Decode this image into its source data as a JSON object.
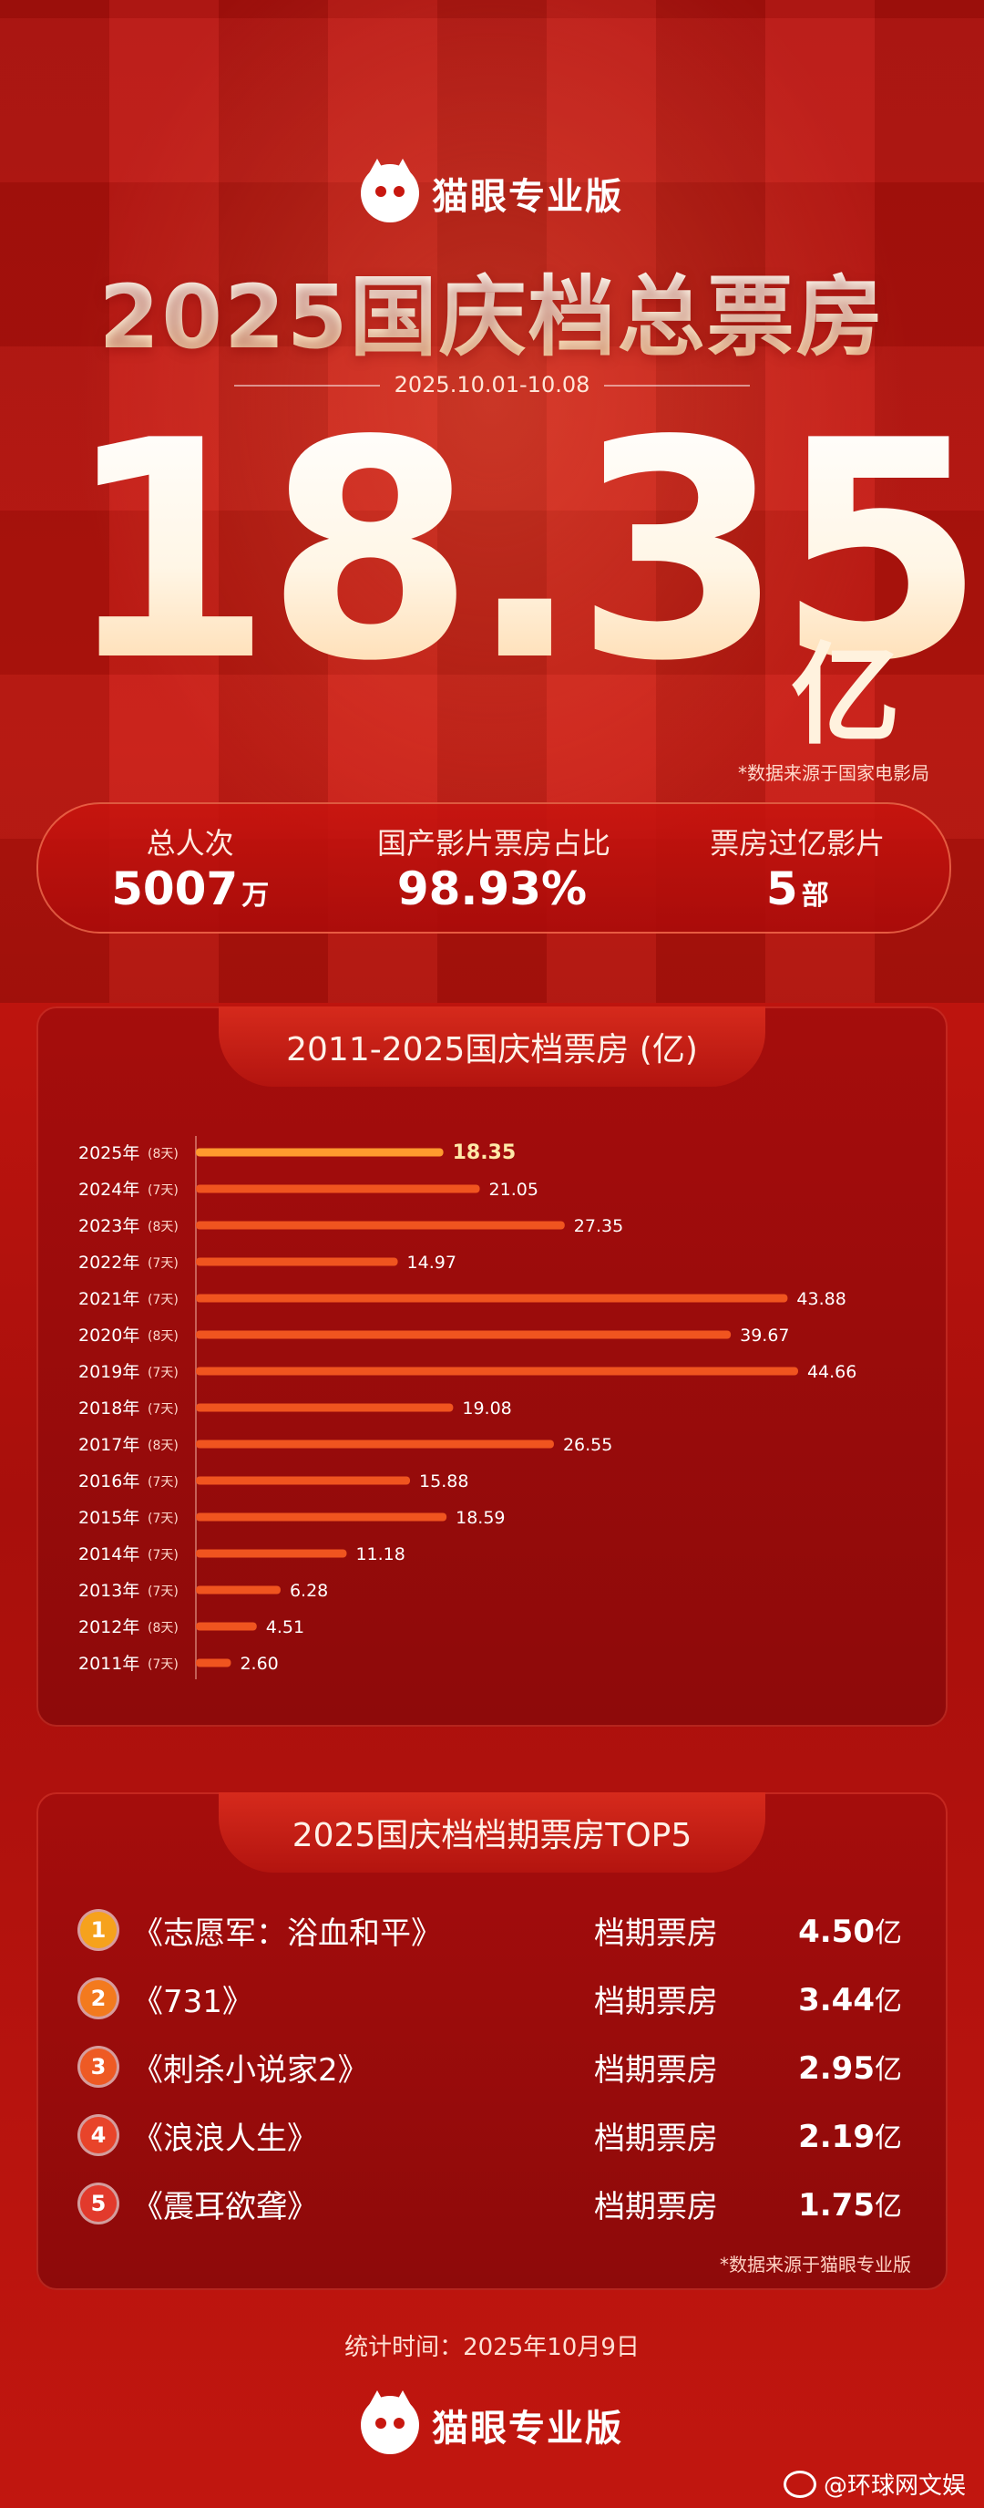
{
  "brand": {
    "name": "猫眼专业版"
  },
  "header": {
    "title": "2025国庆档总票房",
    "date_range": "2025.10.01-10.08",
    "total_value": "18.35",
    "total_unit": "亿",
    "source_note": "*数据来源于国家电影局"
  },
  "stats": [
    {
      "label": "总人次",
      "value": "5007",
      "unit": "万"
    },
    {
      "label": "国产影片票房占比",
      "value": "98.93%",
      "unit": ""
    },
    {
      "label": "票房过亿影片",
      "value": "5",
      "unit": "部"
    }
  ],
  "chart_data": {
    "type": "bar",
    "title": "2011-2025国庆档票房 (亿)",
    "orientation": "horizontal",
    "categories": [
      "2025年",
      "2024年",
      "2023年",
      "2022年",
      "2021年",
      "2020年",
      "2019年",
      "2018年",
      "2017年",
      "2016年",
      "2015年",
      "2014年",
      "2013年",
      "2012年",
      "2011年"
    ],
    "days": [
      "(8天)",
      "(7天)",
      "(8天)",
      "(7天)",
      "(7天)",
      "(8天)",
      "(7天)",
      "(7天)",
      "(8天)",
      "(7天)",
      "(7天)",
      "(7天)",
      "(7天)",
      "(8天)",
      "(7天)"
    ],
    "values": [
      18.35,
      21.05,
      27.35,
      14.97,
      43.88,
      39.67,
      44.66,
      19.08,
      26.55,
      15.88,
      18.59,
      11.18,
      6.28,
      4.51,
      2.6
    ],
    "value_labels": [
      "18.35",
      "21.05",
      "27.35",
      "14.97",
      "43.88",
      "39.67",
      "44.66",
      "19.08",
      "26.55",
      "15.88",
      "18.59",
      "11.18",
      "6.28",
      "4.51",
      "2.60"
    ],
    "xlim": [
      0,
      50
    ],
    "highlight_color": "#ff9a2e",
    "bar_color": "#f0541f"
  },
  "top5": {
    "title": "2025国庆档档期票房TOP5",
    "column_label": "档期票房",
    "items": [
      {
        "rank": "1",
        "film": "《志愿军：浴血和平》",
        "gross": "4.50",
        "unit": "亿",
        "color": "#f6a21c"
      },
      {
        "rank": "2",
        "film": "《731》",
        "gross": "3.44",
        "unit": "亿",
        "color": "#f37a1e"
      },
      {
        "rank": "3",
        "film": "《刺杀小说家2》",
        "gross": "2.95",
        "unit": "亿",
        "color": "#ee5a24"
      },
      {
        "rank": "4",
        "film": "《浪浪人生》",
        "gross": "2.19",
        "unit": "亿",
        "color": "#e8442a"
      },
      {
        "rank": "5",
        "film": "《震耳欲聋》",
        "gross": "1.75",
        "unit": "亿",
        "color": "#e23a2c"
      }
    ],
    "source_note": "*数据来源于猫眼专业版"
  },
  "footer": {
    "stat_time": "统计时间：2025年10月9日",
    "watermark": "@环球网文娱"
  }
}
